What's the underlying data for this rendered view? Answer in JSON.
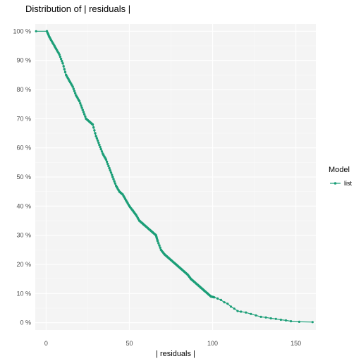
{
  "chart_data": {
    "type": "line",
    "title": "Distribution of | residuals |",
    "xlabel": "| residuals |",
    "ylabel": "",
    "xlim": [
      -6.5,
      162
    ],
    "ylim": [
      -2.5,
      102.5
    ],
    "x_ticks": [
      0,
      50,
      100,
      150
    ],
    "x_tick_labels": [
      "0",
      "50",
      "100",
      "150"
    ],
    "y_ticks": [
      0,
      10,
      20,
      30,
      40,
      50,
      60,
      70,
      80,
      90,
      100
    ],
    "y_tick_labels": [
      "0 %",
      "10 %",
      "20 %",
      "30 %",
      "40 %",
      "50 %",
      "60 %",
      "70 %",
      "80 %",
      "90 %",
      "100 %"
    ],
    "grid": true,
    "legend": {
      "title": "Model",
      "position": "right"
    },
    "series": [
      {
        "name": "list",
        "color": "#1b9e77",
        "x": [
          -6,
          0.5,
          2,
          4,
          6,
          8,
          10,
          12,
          14,
          16,
          18,
          20,
          22,
          24,
          26,
          28,
          30,
          32,
          34,
          36,
          38,
          40,
          42,
          44,
          46,
          48,
          50,
          52,
          54,
          56,
          58,
          60,
          62,
          64,
          66,
          67,
          69,
          71,
          73,
          75,
          77,
          79,
          81,
          83,
          85,
          87,
          89,
          91,
          93,
          95,
          97,
          99,
          101,
          103,
          105,
          107,
          109,
          111,
          113,
          115,
          117,
          120,
          123,
          126,
          129,
          132,
          135,
          138,
          141,
          144,
          147,
          152,
          160
        ],
        "y": [
          100,
          100,
          98,
          96,
          94,
          92,
          89,
          85,
          83,
          81,
          78,
          76,
          73,
          70,
          69,
          68,
          64,
          61,
          58,
          56,
          53,
          50,
          47,
          45,
          44,
          42,
          40,
          38.5,
          37,
          35,
          34,
          33,
          32,
          31,
          30,
          28,
          25,
          23.5,
          22.5,
          21.5,
          20.5,
          19.5,
          18.5,
          17.5,
          16.5,
          15,
          14,
          13,
          12,
          11,
          10,
          9,
          8.7,
          8.3,
          7.8,
          7,
          6.5,
          5.5,
          4.8,
          4,
          3.8,
          3.5,
          3,
          2.5,
          2,
          1.8,
          1.5,
          1.3,
          1,
          0.8,
          0.5,
          0.3,
          0.2
        ]
      }
    ]
  }
}
